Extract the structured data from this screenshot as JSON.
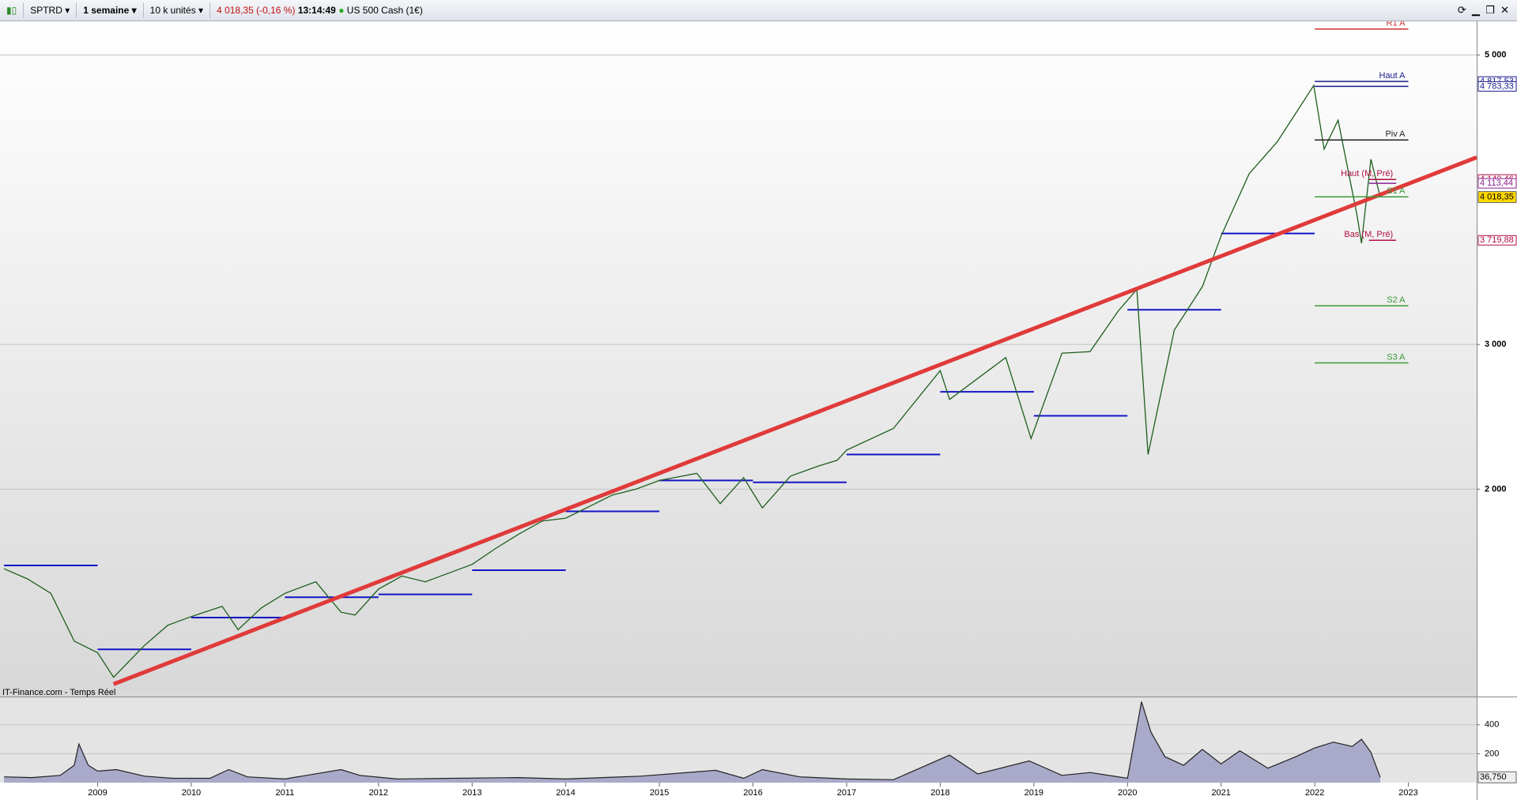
{
  "toolbar": {
    "symbol": "SPTRD",
    "period": "1 semaine",
    "units": "10 k unités",
    "quote": "4 018,35 (-0,16 %)",
    "time": "13:14:49",
    "instrument": "US 500 Cash (1€)"
  },
  "watermark": "IT-Finance.com - Temps Réel",
  "chart_data": [
    {
      "type": "line",
      "color": "#1d5e1d",
      "x": [
        2008.0,
        2008.25,
        2008.5,
        2008.75,
        2009.0,
        2009.17,
        2009.5,
        2009.75,
        2010.0,
        2010.33,
        2010.5,
        2010.75,
        2011.0,
        2011.33,
        2011.6,
        2011.75,
        2012.0,
        2012.25,
        2012.5,
        2012.75,
        2013.0,
        2013.25,
        2013.5,
        2013.75,
        2014.0,
        2014.25,
        2014.5,
        2014.75,
        2015.0,
        2015.4,
        2015.65,
        2015.9,
        2016.1,
        2016.4,
        2016.7,
        2016.9,
        2017.0,
        2017.5,
        2018.0,
        2018.1,
        2018.7,
        2018.97,
        2019.3,
        2019.6,
        2019.9,
        2020.1,
        2020.22,
        2020.5,
        2020.8,
        2021.0,
        2021.3,
        2021.6,
        2021.8,
        2021.99,
        2022.1,
        2022.25,
        2022.45,
        2022.5,
        2022.6,
        2022.7
      ],
      "values": [
        1450,
        1380,
        1280,
        950,
        870,
        700,
        920,
        1060,
        1120,
        1190,
        1030,
        1180,
        1280,
        1360,
        1150,
        1130,
        1310,
        1400,
        1360,
        1420,
        1480,
        1590,
        1690,
        1780,
        1800,
        1880,
        1960,
        2000,
        2060,
        2110,
        1900,
        2080,
        1870,
        2090,
        2160,
        2200,
        2270,
        2420,
        2820,
        2620,
        2910,
        2350,
        2940,
        2950,
        3230,
        3380,
        2240,
        3100,
        3400,
        3750,
        4180,
        4400,
        4600,
        4790,
        4350,
        4550,
        3900,
        3700,
        4280,
        4018
      ],
      "xlim": [
        2007.957,
        2023.73
      ],
      "ylim": [
        567,
        5233
      ],
      "xticks": [
        2009,
        2010,
        2011,
        2012,
        2013,
        2014,
        2015,
        2016,
        2017,
        2018,
        2019,
        2020,
        2021,
        2022,
        2023
      ],
      "yticks": [
        {
          "value": 5000,
          "label": "5 000"
        },
        {
          "value": 3000,
          "label": "3 000"
        },
        {
          "value": 2000,
          "label": "2 000"
        }
      ],
      "trendline": {
        "color": "#e03a3a",
        "x": [
          2009.17,
          2023.73
        ],
        "values": [
          653,
          4293
        ]
      },
      "prev_close_lines": {
        "color": "#1414c8",
        "segments": [
          [
            2008,
            2009,
            1473
          ],
          [
            2009,
            2010,
            893
          ],
          [
            2010,
            2011,
            1113
          ],
          [
            2011,
            2012,
            1253
          ],
          [
            2012,
            2013,
            1273
          ],
          [
            2013,
            2014,
            1440
          ],
          [
            2014,
            2015,
            1847
          ],
          [
            2015,
            2016,
            2060
          ],
          [
            2016,
            2017,
            2047
          ],
          [
            2017,
            2018,
            2240
          ],
          [
            2018,
            2019,
            2673
          ],
          [
            2019,
            2020,
            2507
          ],
          [
            2020,
            2021,
            3240
          ],
          [
            2021,
            2022,
            3767
          ]
        ]
      },
      "levels": [
        {
          "name": "R1 A",
          "value": 5180,
          "color": "#d03030",
          "x": [
            2022,
            2023
          ]
        },
        {
          "name": "Haut A",
          "value": 4817.53,
          "value_label": "4 817,53",
          "color": "#1a1a8c",
          "x": [
            2022,
            2023
          ]
        },
        {
          "value": 4783.33,
          "value_label": "4 783,33",
          "color": "#1a1a8c",
          "x": [
            2022,
            2023
          ]
        },
        {
          "name": "Piv A",
          "value": 4413,
          "color": "#222222",
          "x": [
            2022,
            2023
          ]
        },
        {
          "name": "Haut (M, Pré)",
          "value": 4140.46,
          "value_label": "4 140,46",
          "color": "#b01040",
          "x": [
            2022.58,
            2022.87
          ]
        },
        {
          "value": 4113.44,
          "value_label": "4 113,44",
          "color": "#8a2090",
          "x": [
            2022.58,
            2022.87
          ]
        },
        {
          "name": "S1 A",
          "value": 4020,
          "color": "#3a9a3a",
          "x": [
            2022,
            2023
          ]
        },
        {
          "name": "Bas (M, Pré)",
          "value": 3719.88,
          "value_label": "3 719,88",
          "color": "#b01040",
          "x": [
            2022.58,
            2022.87
          ]
        },
        {
          "name": "S2 A",
          "value": 3267,
          "color": "#3a9a3a",
          "x": [
            2022,
            2023
          ]
        },
        {
          "name": "S3 A",
          "value": 2873,
          "color": "#3a9a3a",
          "x": [
            2022,
            2023
          ]
        }
      ],
      "last": {
        "value": 4018.35,
        "label": "4 018,35"
      }
    },
    {
      "type": "area",
      "color": "#a9a9c9",
      "x": [
        2008.0,
        2008.3,
        2008.6,
        2008.75,
        2008.8,
        2008.9,
        2009.0,
        2009.2,
        2009.5,
        2009.8,
        2010.2,
        2010.4,
        2010.6,
        2011.0,
        2011.6,
        2011.8,
        2012.2,
        2012.8,
        2013.5,
        2014.0,
        2014.8,
        2015.6,
        2015.9,
        2016.1,
        2016.5,
        2017.0,
        2017.5,
        2018.1,
        2018.4,
        2018.95,
        2019.3,
        2019.6,
        2020.0,
        2020.15,
        2020.25,
        2020.4,
        2020.6,
        2020.8,
        2021.0,
        2021.2,
        2021.5,
        2021.8,
        2022.0,
        2022.2,
        2022.4,
        2022.5,
        2022.6,
        2022.7
      ],
      "values": [
        40,
        35,
        50,
        120,
        267,
        120,
        80,
        90,
        45,
        30,
        30,
        90,
        40,
        25,
        90,
        50,
        25,
        30,
        35,
        25,
        45,
        85,
        30,
        90,
        40,
        25,
        20,
        190,
        60,
        150,
        50,
        70,
        30,
        560,
        350,
        180,
        120,
        230,
        130,
        220,
        100,
        180,
        240,
        280,
        250,
        300,
        210,
        36.75
      ],
      "xlim": [
        2007.957,
        2023.73
      ],
      "ylim": [
        0,
        590
      ],
      "yticks": [
        200,
        400
      ],
      "last": {
        "value": 36.75,
        "label": "36,750"
      }
    }
  ]
}
